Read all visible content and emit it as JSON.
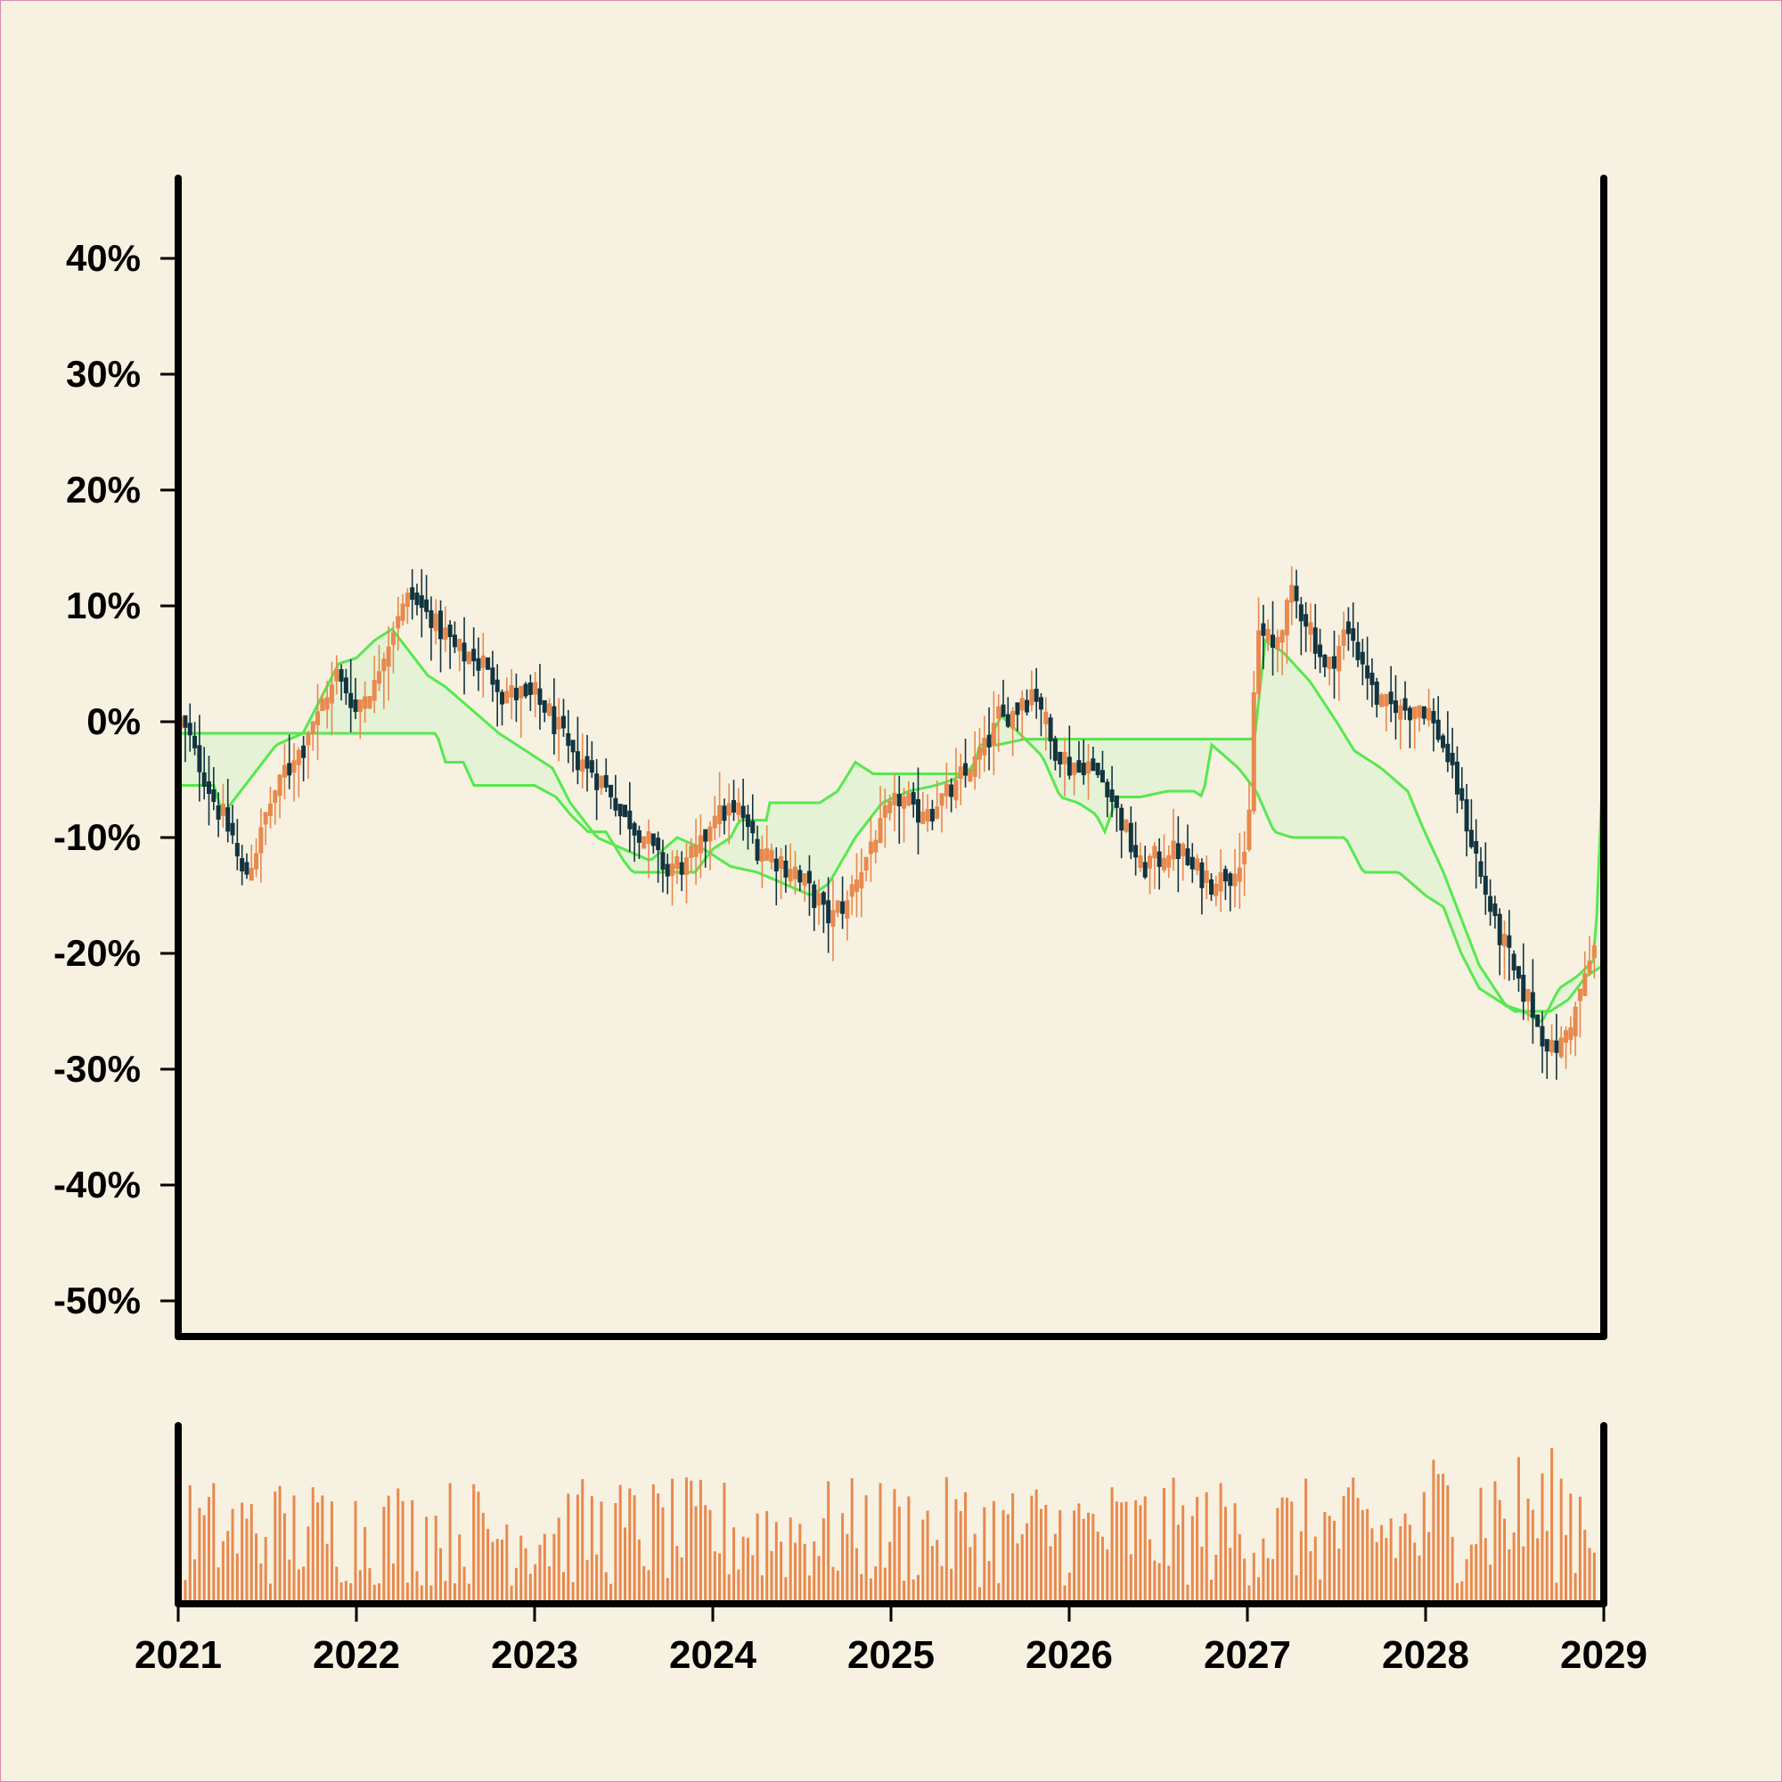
{
  "theme": {
    "background": "#f7f1e1",
    "up_color": "#e8894e",
    "down_color": "#12343f",
    "band_line_color": "#57e84f",
    "band_fill_color": "#e3f2d4",
    "volume_color": "#e8894e",
    "axis_color": "#000000"
  },
  "chart_data": {
    "type": "candlestick",
    "y_unit": "%",
    "ylim": [
      -53,
      47
    ],
    "y_ticks": [
      -50,
      -40,
      -30,
      -20,
      -10,
      0,
      10,
      20,
      30,
      40
    ],
    "y_tick_labels": [
      "-50%",
      "-40%",
      "-30%",
      "-20%",
      "-10%",
      "0%",
      "10%",
      "20%",
      "30%",
      "40%"
    ],
    "xlim": [
      2021,
      2029
    ],
    "x_ticks": [
      2021,
      2022,
      2023,
      2024,
      2025,
      2026,
      2027,
      2028,
      2029
    ],
    "x_tick_labels": [
      "2021",
      "2022",
      "2023",
      "2024",
      "2025",
      "2026",
      "2027",
      "2028",
      "2029"
    ],
    "grid": false,
    "legend": "none",
    "price_close_path": [
      [
        2021.0,
        0
      ],
      [
        2021.1,
        -3
      ],
      [
        2021.2,
        -7
      ],
      [
        2021.3,
        -10
      ],
      [
        2021.37,
        -14
      ],
      [
        2021.48,
        -9
      ],
      [
        2021.58,
        -5
      ],
      [
        2021.7,
        -2
      ],
      [
        2021.8,
        1
      ],
      [
        2021.9,
        4
      ],
      [
        2022.0,
        1
      ],
      [
        2022.1,
        3
      ],
      [
        2022.2,
        8
      ],
      [
        2022.3,
        11
      ],
      [
        2022.42,
        9
      ],
      [
        2022.55,
        6
      ],
      [
        2022.7,
        5
      ],
      [
        2022.85,
        2
      ],
      [
        2023.0,
        2
      ],
      [
        2023.1,
        0
      ],
      [
        2023.2,
        -3
      ],
      [
        2023.3,
        -4
      ],
      [
        2023.4,
        -6
      ],
      [
        2023.5,
        -8
      ],
      [
        2023.6,
        -10
      ],
      [
        2023.75,
        -13
      ],
      [
        2023.9,
        -12
      ],
      [
        2024.0,
        -8
      ],
      [
        2024.15,
        -8
      ],
      [
        2024.25,
        -11
      ],
      [
        2024.35,
        -12
      ],
      [
        2024.45,
        -13
      ],
      [
        2024.55,
        -15
      ],
      [
        2024.65,
        -17
      ],
      [
        2024.75,
        -16
      ],
      [
        2024.85,
        -12
      ],
      [
        2024.95,
        -9
      ],
      [
        2025.05,
        -7
      ],
      [
        2025.15,
        -8
      ],
      [
        2025.3,
        -7
      ],
      [
        2025.4,
        -5
      ],
      [
        2025.5,
        -3
      ],
      [
        2025.6,
        0
      ],
      [
        2025.7,
        1
      ],
      [
        2025.8,
        3
      ],
      [
        2025.9,
        -2
      ],
      [
        2026.0,
        -4
      ],
      [
        2026.1,
        -4
      ],
      [
        2026.2,
        -5
      ],
      [
        2026.3,
        -9
      ],
      [
        2026.4,
        -13
      ],
      [
        2026.5,
        -12
      ],
      [
        2026.6,
        -11
      ],
      [
        2026.7,
        -13
      ],
      [
        2026.8,
        -14
      ],
      [
        2026.9,
        -13
      ],
      [
        2027.0,
        -12
      ],
      [
        2027.05,
        8
      ],
      [
        2027.15,
        6
      ],
      [
        2027.25,
        11
      ],
      [
        2027.35,
        8
      ],
      [
        2027.45,
        4
      ],
      [
        2027.55,
        8
      ],
      [
        2027.65,
        5
      ],
      [
        2027.75,
        1
      ],
      [
        2027.9,
        1
      ],
      [
        2028.0,
        1
      ],
      [
        2028.1,
        -2
      ],
      [
        2028.2,
        -7
      ],
      [
        2028.3,
        -13
      ],
      [
        2028.4,
        -18
      ],
      [
        2028.5,
        -22
      ],
      [
        2028.6,
        -25
      ],
      [
        2028.7,
        -29
      ],
      [
        2028.8,
        -27
      ],
      [
        2028.9,
        -22
      ],
      [
        2028.95,
        -20
      ]
    ],
    "band_upper": [
      [
        2021.0,
        -1
      ],
      [
        2022.0,
        -1
      ],
      [
        2022.45,
        -1
      ],
      [
        2022.5,
        -3.5
      ],
      [
        2022.6,
        -3.5
      ],
      [
        2022.66,
        -5.5
      ],
      [
        2022.8,
        -5.5
      ],
      [
        2023.0,
        -5.5
      ],
      [
        2023.12,
        -6.5
      ],
      [
        2023.2,
        -8
      ],
      [
        2023.3,
        -9.5
      ],
      [
        2023.4,
        -9.5
      ],
      [
        2023.5,
        -12
      ],
      [
        2023.55,
        -13
      ],
      [
        2023.75,
        -13
      ],
      [
        2023.9,
        -13
      ],
      [
        2024.0,
        -11
      ],
      [
        2024.1,
        -10
      ],
      [
        2024.15,
        -8.5
      ],
      [
        2024.3,
        -8.5
      ],
      [
        2024.32,
        -7
      ],
      [
        2024.6,
        -7
      ],
      [
        2024.7,
        -6
      ],
      [
        2024.8,
        -3.5
      ],
      [
        2024.9,
        -4.5
      ],
      [
        2025.0,
        -4.5
      ],
      [
        2025.45,
        -4.5
      ],
      [
        2025.5,
        -2
      ],
      [
        2025.6,
        -2
      ],
      [
        2025.75,
        -1.5
      ],
      [
        2026.75,
        -1.5
      ],
      [
        2026.82,
        -1.5
      ],
      [
        2026.95,
        -1.5
      ],
      [
        2027.0,
        -1.5
      ],
      [
        2027.04,
        -1.5
      ],
      [
        2027.1,
        7
      ],
      [
        2027.2,
        6
      ],
      [
        2027.35,
        3.5
      ],
      [
        2027.5,
        0
      ],
      [
        2027.6,
        -2.5
      ],
      [
        2027.75,
        -4
      ],
      [
        2027.9,
        -6
      ],
      [
        2027.98,
        -9
      ],
      [
        2028.1,
        -13
      ],
      [
        2028.3,
        -21
      ],
      [
        2028.45,
        -24.5
      ],
      [
        2028.55,
        -25
      ],
      [
        2028.65,
        -26
      ],
      [
        2028.75,
        -23
      ],
      [
        2028.85,
        -22
      ],
      [
        2028.95,
        -20.5
      ],
      [
        2029.0,
        -2
      ]
    ],
    "band_lower": [
      [
        2021.0,
        -5.5
      ],
      [
        2021.2,
        -5.5
      ],
      [
        2021.25,
        -8
      ],
      [
        2021.4,
        -5
      ],
      [
        2021.55,
        -2
      ],
      [
        2021.7,
        -1
      ],
      [
        2021.8,
        2
      ],
      [
        2021.9,
        5
      ],
      [
        2022.0,
        5.5
      ],
      [
        2022.1,
        7
      ],
      [
        2022.2,
        8
      ],
      [
        2022.3,
        6
      ],
      [
        2022.4,
        4
      ],
      [
        2022.5,
        3
      ],
      [
        2022.65,
        1
      ],
      [
        2022.8,
        -1
      ],
      [
        2023.0,
        -3
      ],
      [
        2023.1,
        -4
      ],
      [
        2023.2,
        -7
      ],
      [
        2023.35,
        -10
      ],
      [
        2023.5,
        -11
      ],
      [
        2023.65,
        -12
      ],
      [
        2023.8,
        -10
      ],
      [
        2023.95,
        -11
      ],
      [
        2024.1,
        -12.5
      ],
      [
        2024.25,
        -13
      ],
      [
        2024.4,
        -14
      ],
      [
        2024.55,
        -15
      ],
      [
        2024.65,
        -14
      ],
      [
        2024.8,
        -10
      ],
      [
        2024.95,
        -7
      ],
      [
        2025.1,
        -6
      ],
      [
        2025.25,
        -5.5
      ],
      [
        2025.35,
        -5
      ],
      [
        2025.45,
        -4
      ],
      [
        2025.55,
        -1.5
      ],
      [
        2025.62,
        0.5
      ],
      [
        2025.72,
        -1
      ],
      [
        2025.85,
        -3
      ],
      [
        2025.95,
        -6.5
      ],
      [
        2026.05,
        -7
      ],
      [
        2026.15,
        -8
      ],
      [
        2026.2,
        -9.5
      ],
      [
        2026.27,
        -6.5
      ],
      [
        2026.4,
        -6.5
      ],
      [
        2026.55,
        -6
      ],
      [
        2026.7,
        -6
      ],
      [
        2026.75,
        -6.5
      ],
      [
        2026.8,
        -2
      ],
      [
        2026.95,
        -4
      ],
      [
        2027.05,
        -6
      ],
      [
        2027.15,
        -9.5
      ],
      [
        2027.25,
        -10
      ],
      [
        2027.35,
        -10
      ],
      [
        2027.55,
        -10
      ],
      [
        2027.65,
        -13
      ],
      [
        2027.85,
        -13
      ],
      [
        2028.0,
        -15
      ],
      [
        2028.1,
        -16
      ],
      [
        2028.2,
        -20
      ],
      [
        2028.3,
        -23
      ],
      [
        2028.4,
        -24
      ],
      [
        2028.5,
        -25
      ],
      [
        2028.6,
        -25
      ],
      [
        2028.7,
        -25
      ],
      [
        2028.8,
        -24
      ],
      [
        2028.9,
        -22
      ],
      [
        2029.0,
        -21
      ]
    ],
    "volume_note_levels": [
      3,
      7
    ]
  }
}
